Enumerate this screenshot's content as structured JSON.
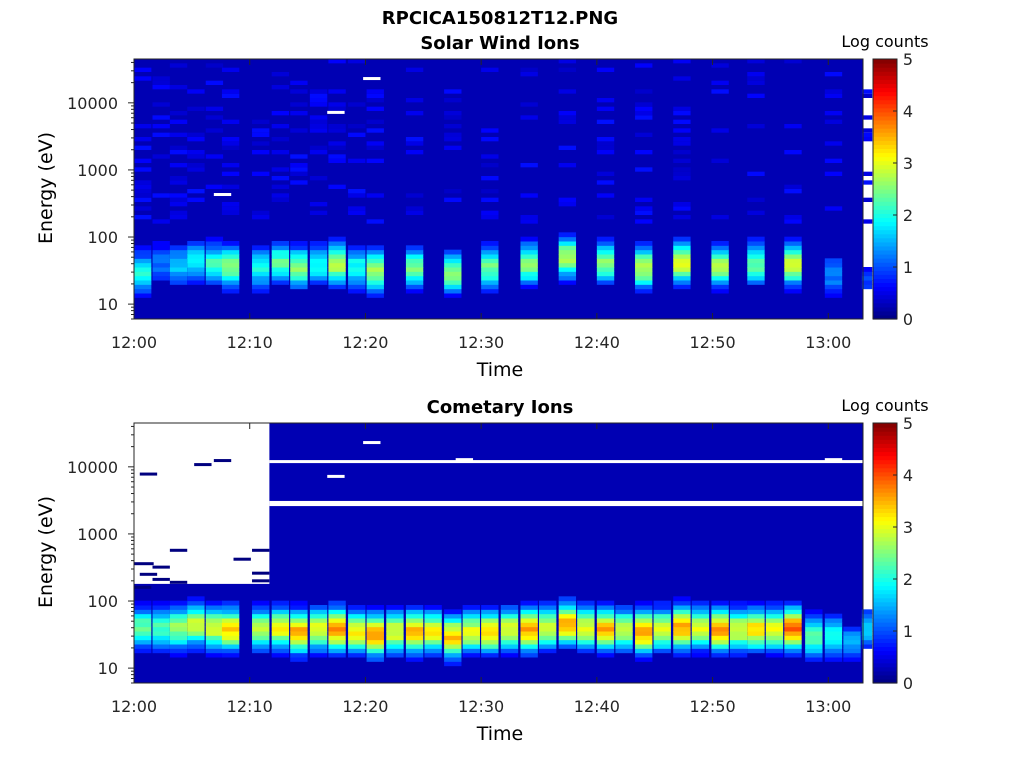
{
  "figure": {
    "title": "RPCICA150812T12.PNG"
  },
  "chart_data": [
    {
      "type": "heatmap",
      "title": "Solar Wind Ions",
      "xlabel": "Time",
      "ylabel": "Energy (eV)",
      "x_range": [
        "12:00",
        "13:03"
      ],
      "x_ticks": [
        "12:00",
        "12:10",
        "12:20",
        "12:30",
        "12:40",
        "12:50",
        "13:00"
      ],
      "y_scale": "log",
      "y_range": [
        6,
        45000
      ],
      "y_ticks": [
        "10",
        "100",
        "1000",
        "10000"
      ],
      "colorbar": {
        "label": "Log counts",
        "range": [
          0,
          5
        ],
        "ticks": [
          "0",
          "1",
          "2",
          "3",
          "4",
          "5"
        ],
        "colormap": "jet"
      },
      "background_level": 0.25,
      "grid": false,
      "sweeps": [
        {
          "t": 0.0,
          "w": 1.5,
          "peak_e": 30,
          "peak": 2.0
        },
        {
          "t": 1.6,
          "w": 1.5,
          "peak_e": 40,
          "peak": 1.2
        },
        {
          "t": 3.1,
          "w": 1.5,
          "peak_e": 38,
          "peak": 1.6
        },
        {
          "t": 4.6,
          "w": 1.5,
          "peak_e": 45,
          "peak": 1.8
        },
        {
          "t": 6.2,
          "w": 1.5,
          "peak_e": 40,
          "peak": 2.2
        },
        {
          "t": 7.6,
          "w": 1.5,
          "peak_e": 38,
          "peak": 2.6
        },
        {
          "t": 10.2,
          "w": 1.5,
          "peak_e": 35,
          "peak": 2.0
        },
        {
          "t": 11.9,
          "w": 1.5,
          "peak_e": 42,
          "peak": 2.3
        },
        {
          "t": 13.5,
          "w": 1.5,
          "peak_e": 35,
          "peak": 2.6
        },
        {
          "t": 15.2,
          "w": 1.5,
          "peak_e": 38,
          "peak": 1.9
        },
        {
          "t": 16.8,
          "w": 1.5,
          "peak_e": 40,
          "peak": 2.8
        },
        {
          "t": 18.5,
          "w": 1.5,
          "peak_e": 35,
          "peak": 2.0
        },
        {
          "t": 20.1,
          "w": 1.5,
          "peak_e": 32,
          "peak": 2.7
        },
        {
          "t": 23.5,
          "w": 1.5,
          "peak_e": 35,
          "peak": 2.4
        },
        {
          "t": 26.8,
          "w": 1.5,
          "peak_e": 30,
          "peak": 2.6
        },
        {
          "t": 30.0,
          "w": 1.5,
          "peak_e": 35,
          "peak": 2.4
        },
        {
          "t": 33.4,
          "w": 1.5,
          "peak_e": 40,
          "peak": 2.6
        },
        {
          "t": 36.7,
          "w": 1.5,
          "peak_e": 50,
          "peak": 2.8
        },
        {
          "t": 40.0,
          "w": 1.5,
          "peak_e": 42,
          "peak": 2.5
        },
        {
          "t": 43.3,
          "w": 1.5,
          "peak_e": 35,
          "peak": 2.8
        },
        {
          "t": 46.6,
          "w": 1.5,
          "peak_e": 42,
          "peak": 3.1
        },
        {
          "t": 49.9,
          "w": 1.5,
          "peak_e": 38,
          "peak": 2.7
        },
        {
          "t": 53.0,
          "w": 1.5,
          "peak_e": 40,
          "peak": 2.4
        },
        {
          "t": 56.2,
          "w": 1.5,
          "peak_e": 40,
          "peak": 3.0
        },
        {
          "t": 59.7,
          "w": 1.5,
          "peak_e": 28,
          "peak": 1.3
        },
        {
          "t": 62.9,
          "w": 0.9,
          "peak_e": 25,
          "peak": 0.9
        }
      ],
      "gaps": [
        {
          "t": 6.9,
          "w": 1.5,
          "e": 430
        },
        {
          "t": 16.7,
          "w": 1.5,
          "e": 7200
        },
        {
          "t": 19.8,
          "w": 1.5,
          "e": 23000
        }
      ]
    },
    {
      "type": "heatmap",
      "title": "Cometary Ions",
      "xlabel": "Time",
      "ylabel": "Energy (eV)",
      "x_range": [
        "12:00",
        "13:03"
      ],
      "x_ticks": [
        "12:00",
        "12:10",
        "12:20",
        "12:30",
        "12:40",
        "12:50",
        "13:00"
      ],
      "y_scale": "log",
      "y_range": [
        6,
        45000
      ],
      "y_ticks": [
        "10",
        "100",
        "1000",
        "10000"
      ],
      "colorbar": {
        "label": "Log counts",
        "range": [
          0,
          5
        ],
        "ticks": [
          "0",
          "1",
          "2",
          "3",
          "4",
          "5"
        ],
        "colormap": "jet"
      },
      "background_level": 0.25,
      "grid": false,
      "no_data_before": 11.7,
      "no_data_bands": [
        {
          "e_min": 2600,
          "e_max": 3100
        },
        {
          "e_min": 11800,
          "e_max": 12600
        }
      ],
      "sweeps": [
        {
          "t": 0.0,
          "w": 1.5,
          "peak_e": 40,
          "peak": 2.4
        },
        {
          "t": 1.6,
          "w": 1.5,
          "peak_e": 40,
          "peak": 2.2
        },
        {
          "t": 3.1,
          "w": 1.5,
          "peak_e": 40,
          "peak": 2.6
        },
        {
          "t": 4.6,
          "w": 1.5,
          "peak_e": 45,
          "peak": 2.9
        },
        {
          "t": 6.2,
          "w": 1.5,
          "peak_e": 40,
          "peak": 3.0
        },
        {
          "t": 7.6,
          "w": 1.5,
          "peak_e": 38,
          "peak": 3.4
        },
        {
          "t": 10.2,
          "w": 1.5,
          "peak_e": 38,
          "peak": 2.8
        },
        {
          "t": 11.9,
          "w": 1.5,
          "peak_e": 40,
          "peak": 3.1
        },
        {
          "t": 13.5,
          "w": 1.5,
          "peak_e": 35,
          "peak": 3.6
        },
        {
          "t": 15.2,
          "w": 1.5,
          "peak_e": 38,
          "peak": 3.0
        },
        {
          "t": 16.8,
          "w": 1.5,
          "peak_e": 38,
          "peak": 3.7
        },
        {
          "t": 18.5,
          "w": 1.5,
          "peak_e": 35,
          "peak": 3.2
        },
        {
          "t": 20.1,
          "w": 1.5,
          "peak_e": 32,
          "peak": 3.7
        },
        {
          "t": 21.8,
          "w": 1.5,
          "peak_e": 35,
          "peak": 3.0
        },
        {
          "t": 23.5,
          "w": 1.5,
          "peak_e": 35,
          "peak": 3.5
        },
        {
          "t": 25.1,
          "w": 1.5,
          "peak_e": 35,
          "peak": 3.1
        },
        {
          "t": 26.8,
          "w": 1.5,
          "peak_e": 30,
          "peak": 3.4
        },
        {
          "t": 28.4,
          "w": 1.5,
          "peak_e": 35,
          "peak": 3.0
        },
        {
          "t": 30.0,
          "w": 1.5,
          "peak_e": 35,
          "peak": 3.4
        },
        {
          "t": 31.7,
          "w": 1.5,
          "peak_e": 38,
          "peak": 3.0
        },
        {
          "t": 33.4,
          "w": 1.5,
          "peak_e": 38,
          "peak": 3.6
        },
        {
          "t": 35.0,
          "w": 1.5,
          "peak_e": 40,
          "peak": 3.0
        },
        {
          "t": 36.7,
          "w": 1.5,
          "peak_e": 45,
          "peak": 3.6
        },
        {
          "t": 38.3,
          "w": 1.5,
          "peak_e": 40,
          "peak": 3.0
        },
        {
          "t": 40.0,
          "w": 1.5,
          "peak_e": 38,
          "peak": 3.5
        },
        {
          "t": 41.6,
          "w": 1.5,
          "peak_e": 38,
          "peak": 2.8
        },
        {
          "t": 43.3,
          "w": 1.5,
          "peak_e": 35,
          "peak": 3.7
        },
        {
          "t": 44.9,
          "w": 1.5,
          "peak_e": 38,
          "peak": 3.0
        },
        {
          "t": 46.6,
          "w": 1.5,
          "peak_e": 40,
          "peak": 3.6
        },
        {
          "t": 48.2,
          "w": 1.5,
          "peak_e": 40,
          "peak": 3.0
        },
        {
          "t": 49.9,
          "w": 1.5,
          "peak_e": 38,
          "peak": 3.7
        },
        {
          "t": 51.5,
          "w": 1.5,
          "peak_e": 38,
          "peak": 3.0
        },
        {
          "t": 53.0,
          "w": 1.5,
          "peak_e": 38,
          "peak": 3.3
        },
        {
          "t": 54.6,
          "w": 1.5,
          "peak_e": 38,
          "peak": 3.0
        },
        {
          "t": 56.2,
          "w": 1.5,
          "peak_e": 40,
          "peak": 3.9
        },
        {
          "t": 58.0,
          "w": 1.5,
          "peak_e": 30,
          "peak": 2.4
        },
        {
          "t": 59.7,
          "w": 1.5,
          "peak_e": 30,
          "peak": 2.1
        },
        {
          "t": 61.3,
          "w": 1.5,
          "peak_e": 25,
          "peak": 1.4
        },
        {
          "t": 62.9,
          "w": 0.9,
          "peak_e": 40,
          "peak": 1.7
        }
      ],
      "gaps": [
        {
          "t": 19.8,
          "w": 1.5,
          "e": 23000
        },
        {
          "t": 16.7,
          "w": 1.5,
          "e": 7200
        },
        {
          "t": 27.8,
          "w": 1.5,
          "e": 12800
        },
        {
          "t": 59.7,
          "w": 1.5,
          "e": 12800
        }
      ],
      "early_marks": [
        {
          "t": 0.5,
          "w": 1.5,
          "e": 7800
        },
        {
          "t": 5.2,
          "w": 1.5,
          "e": 10800
        },
        {
          "t": 6.9,
          "w": 1.5,
          "e": 12400
        },
        {
          "t": 0.0,
          "w": 1.7,
          "e": 360
        },
        {
          "t": 1.6,
          "w": 1.5,
          "e": 320
        },
        {
          "t": 3.1,
          "w": 1.5,
          "e": 570
        },
        {
          "t": 0.5,
          "w": 1.5,
          "e": 250
        },
        {
          "t": 1.6,
          "w": 1.5,
          "e": 210
        },
        {
          "t": 8.6,
          "w": 1.5,
          "e": 420
        },
        {
          "t": 10.2,
          "w": 1.5,
          "e": 570
        },
        {
          "t": 10.2,
          "w": 1.5,
          "e": 260
        },
        {
          "t": 0.0,
          "w": 1.5,
          "e": 160
        },
        {
          "t": 3.1,
          "w": 1.5,
          "e": 190
        },
        {
          "t": 10.2,
          "w": 1.5,
          "e": 200
        }
      ]
    }
  ]
}
